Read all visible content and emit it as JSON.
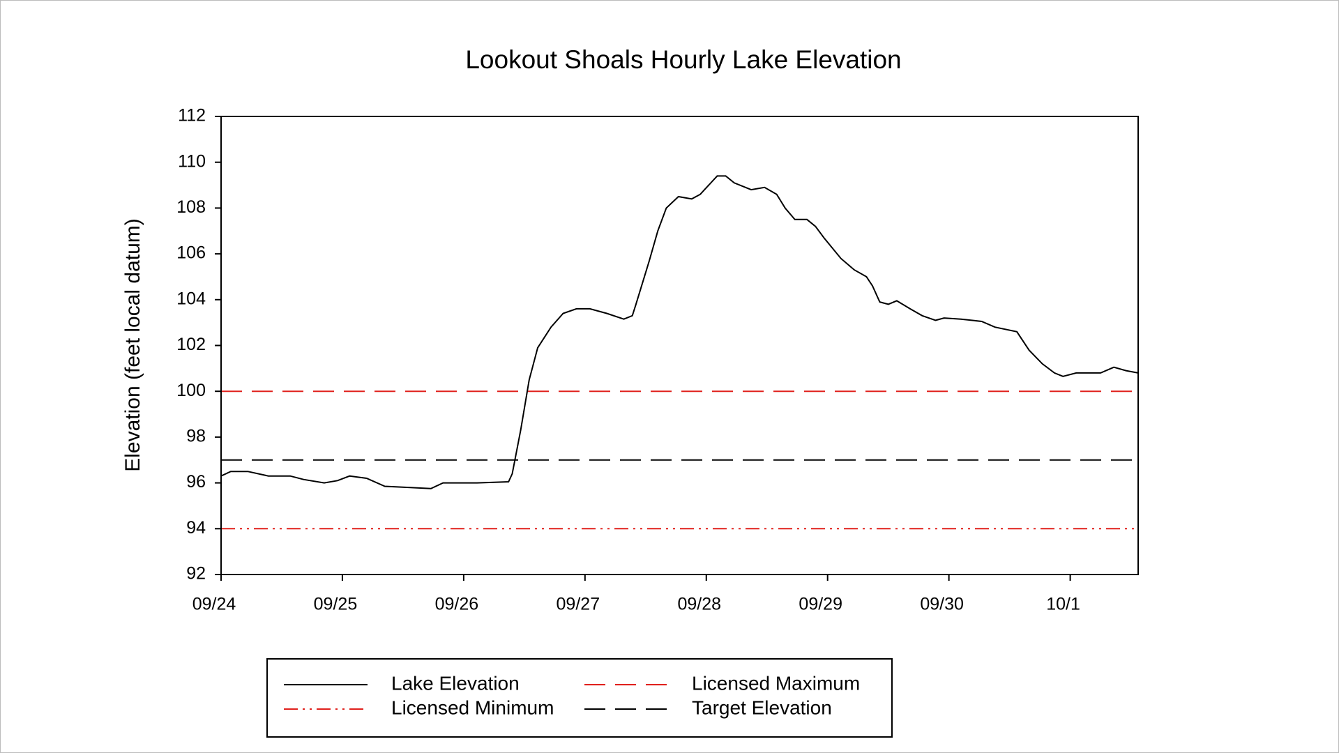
{
  "chart_data": {
    "type": "line",
    "title": "Lookout Shoals Hourly Lake Elevation",
    "y_label": "Elevation (feet local datum)",
    "xlim": [
      0,
      7.56
    ],
    "xticks": [
      {
        "value": 0,
        "label": "09/24"
      },
      {
        "value": 1,
        "label": "09/25"
      },
      {
        "value": 2,
        "label": "09/26"
      },
      {
        "value": 3,
        "label": "09/27"
      },
      {
        "value": 4,
        "label": "09/28"
      },
      {
        "value": 5,
        "label": "09/29"
      },
      {
        "value": 6,
        "label": "09/30"
      },
      {
        "value": 7,
        "label": "10/1"
      }
    ],
    "ylim": [
      92,
      112
    ],
    "yticks": [
      92,
      94,
      96,
      98,
      100,
      102,
      104,
      106,
      108,
      110,
      112
    ],
    "grid": false,
    "x": [
      0,
      0.08,
      0.22,
      0.39,
      0.57,
      0.68,
      0.85,
      0.96,
      1.06,
      1.2,
      1.35,
      1.56,
      1.73,
      1.83,
      2.11,
      2.37,
      2.4,
      2.47,
      2.54,
      2.61,
      2.72,
      2.82,
      2.93,
      3.04,
      3.18,
      3.32,
      3.39,
      3.42,
      3.53,
      3.6,
      3.67,
      3.77,
      3.88,
      3.95,
      4.02,
      4.09,
      4.16,
      4.23,
      4.37,
      4.48,
      4.58,
      4.65,
      4.73,
      4.83,
      4.9,
      4.97,
      5.11,
      5.22,
      5.32,
      5.37,
      5.43,
      5.5,
      5.57,
      5.68,
      5.78,
      5.89,
      5.96,
      6.1,
      6.27,
      6.38,
      6.56,
      6.66,
      6.77,
      6.87,
      6.94,
      7.05,
      7.15,
      7.25,
      7.36,
      7.46,
      7.56
    ],
    "series": [
      {
        "name": "Lake Elevation",
        "color": "#000000",
        "dash": "solid",
        "values": [
          96.3,
          96.5,
          96.5,
          96.3,
          96.3,
          96.15,
          96.0,
          96.1,
          96.3,
          96.2,
          95.85,
          95.8,
          95.75,
          96.0,
          96.0,
          96.05,
          96.4,
          98.3,
          100.5,
          101.9,
          102.8,
          103.4,
          103.6,
          103.6,
          103.4,
          103.15,
          103.3,
          103.8,
          105.7,
          107.0,
          108.0,
          108.5,
          108.4,
          108.6,
          109.0,
          109.4,
          109.4,
          109.1,
          108.8,
          108.9,
          108.6,
          108.0,
          107.5,
          107.5,
          107.2,
          106.7,
          105.8,
          105.3,
          105.0,
          104.6,
          103.9,
          103.8,
          103.95,
          103.6,
          103.3,
          103.1,
          103.2,
          103.15,
          103.05,
          102.8,
          102.6,
          101.8,
          101.2,
          100.8,
          100.65,
          100.8,
          100.8,
          100.8,
          101.05,
          100.9,
          100.8
        ]
      }
    ],
    "reference_lines": [
      {
        "name": "Licensed Maximum",
        "color": "#e0201c",
        "dash": "dashed",
        "value": 100
      },
      {
        "name": "Licensed Minimum",
        "color": "#e0201c",
        "dash": "dash-dot-dot",
        "value": 94
      },
      {
        "name": "Target Elevation",
        "color": "#000000",
        "dash": "dashed",
        "value": 97
      }
    ]
  }
}
